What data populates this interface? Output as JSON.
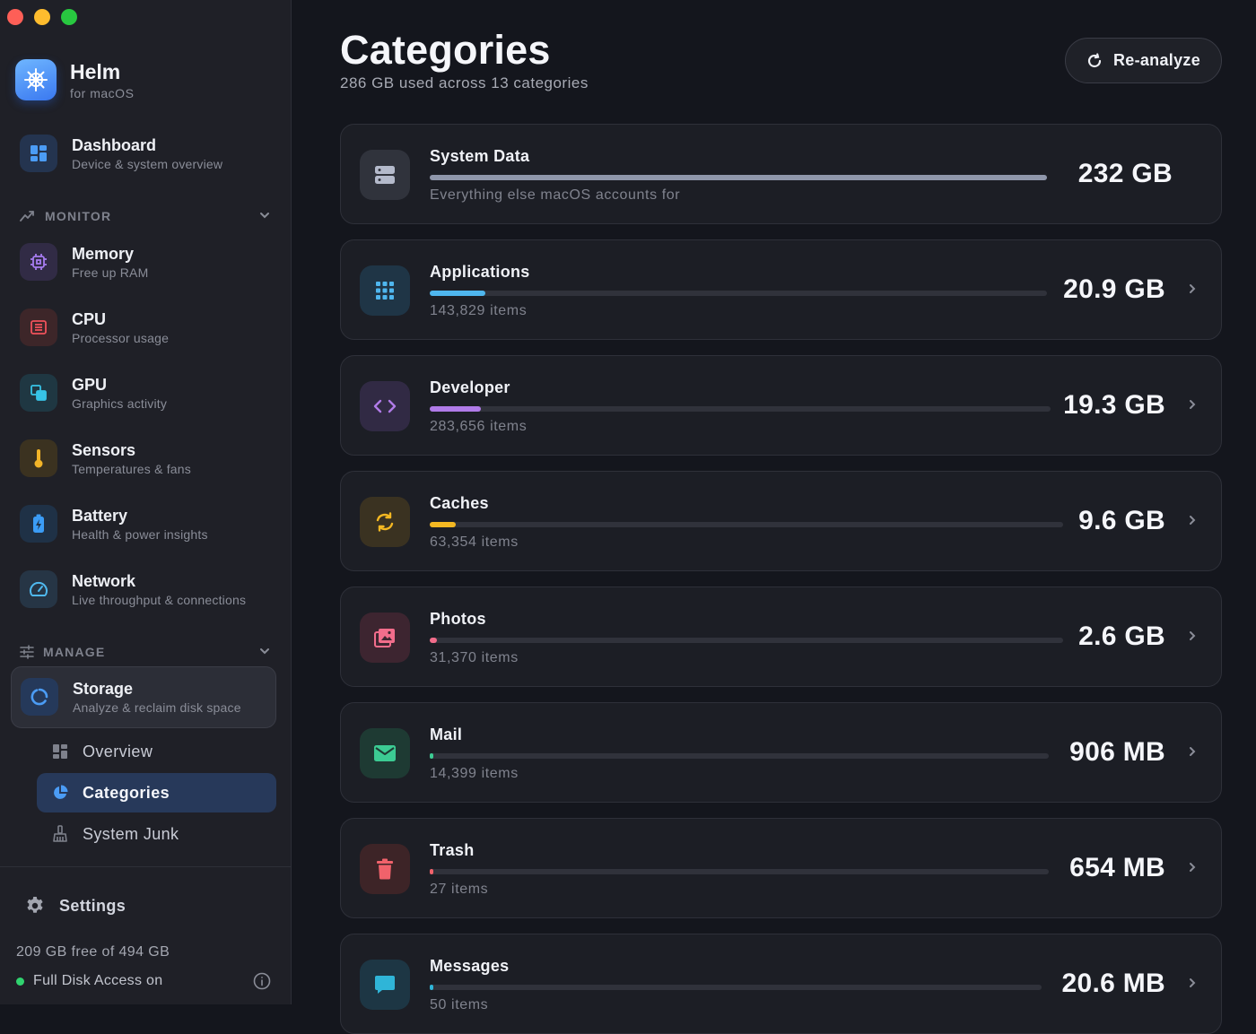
{
  "app": {
    "name": "Helm",
    "subtitle": "for macOS"
  },
  "nav": {
    "dashboard": {
      "title": "Dashboard",
      "subtitle": "Device & system overview"
    },
    "monitor_label": "MONITOR",
    "monitor_items": [
      {
        "title": "Memory",
        "subtitle": "Free up RAM"
      },
      {
        "title": "CPU",
        "subtitle": "Processor usage"
      },
      {
        "title": "GPU",
        "subtitle": "Graphics activity"
      },
      {
        "title": "Sensors",
        "subtitle": "Temperatures & fans"
      },
      {
        "title": "Battery",
        "subtitle": "Health & power insights"
      },
      {
        "title": "Network",
        "subtitle": "Live throughput & connections"
      }
    ],
    "manage_label": "MANAGE",
    "storage": {
      "title": "Storage",
      "subtitle": "Analyze & reclaim disk space"
    },
    "storage_sub": [
      {
        "label": "Overview"
      },
      {
        "label": "Categories"
      },
      {
        "label": "System Junk"
      }
    ],
    "settings": "Settings"
  },
  "footer": {
    "free_space": "209 GB free of 494 GB",
    "disk_access": "Full Disk Access on"
  },
  "main": {
    "title": "Categories",
    "subtitle": "286 GB used across 13 categories",
    "reanalyze": "Re-analyze",
    "categories": [
      {
        "name": "System Data",
        "detail": "Everything else macOS accounts for",
        "size": "232 GB",
        "fill": 1.0,
        "color": "#8f97ab"
      },
      {
        "name": "Applications",
        "detail": "143,829 items",
        "size": "20.9 GB",
        "fill": 0.09,
        "color": "#4fb6ee"
      },
      {
        "name": "Developer",
        "detail": "283,656 items",
        "size": "19.3 GB",
        "fill": 0.083,
        "color": "#b07be8"
      },
      {
        "name": "Caches",
        "detail": "63,354 items",
        "size": "9.6 GB",
        "fill": 0.041,
        "color": "#f4b822"
      },
      {
        "name": "Photos",
        "detail": "31,370 items",
        "size": "2.6 GB",
        "fill": 0.011,
        "color": "#f26d8b"
      },
      {
        "name": "Mail",
        "detail": "14,399 items",
        "size": "906 MB",
        "fill": 0.004,
        "color": "#3ccb93"
      },
      {
        "name": "Trash",
        "detail": "27 items",
        "size": "654 MB",
        "fill": 0.003,
        "color": "#f0626b"
      },
      {
        "name": "Messages",
        "detail": "50 items",
        "size": "20.6 MB",
        "fill": 0.0001,
        "color": "#2fb5d8"
      }
    ]
  }
}
